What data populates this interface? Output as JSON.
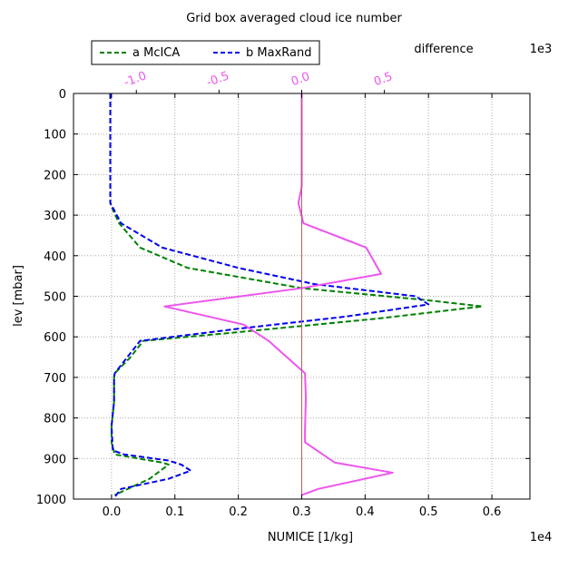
{
  "chart_data": {
    "type": "line",
    "title": "Grid box averaged cloud ice number",
    "xlabel": "NUMICE [1/kg]",
    "ylabel": "lev [mbar]",
    "x_scale_label": "1e4",
    "top_axis_label": "difference",
    "top_axis_scale_label": "1e3",
    "xlim": [
      -0.06,
      0.66
    ],
    "ylim": [
      1000,
      0
    ],
    "top_xlim": [
      -1.38,
      1.38
    ],
    "grid": true,
    "legend_position": "top-left, above plot",
    "x_ticks": [
      {
        "value": 0.0,
        "label": "0.0"
      },
      {
        "value": 0.1,
        "label": "0.1"
      },
      {
        "value": 0.2,
        "label": "0.2"
      },
      {
        "value": 0.3,
        "label": "0.3"
      },
      {
        "value": 0.4,
        "label": "0.4"
      },
      {
        "value": 0.5,
        "label": "0.5"
      },
      {
        "value": 0.6,
        "label": "0.6"
      }
    ],
    "y_ticks": [
      {
        "value": 0,
        "label": "0"
      },
      {
        "value": 100,
        "label": "100"
      },
      {
        "value": 200,
        "label": "200"
      },
      {
        "value": 300,
        "label": "300"
      },
      {
        "value": 400,
        "label": "400"
      },
      {
        "value": 500,
        "label": "500"
      },
      {
        "value": 600,
        "label": "600"
      },
      {
        "value": 700,
        "label": "700"
      },
      {
        "value": 800,
        "label": "800"
      },
      {
        "value": 900,
        "label": "900"
      },
      {
        "value": 1000,
        "label": "1000"
      }
    ],
    "top_ticks": [
      {
        "value": -1.0,
        "label": "-1.0"
      },
      {
        "value": -0.5,
        "label": "-0.5"
      },
      {
        "value": 0.0,
        "label": "0.0"
      },
      {
        "value": 0.5,
        "label": "0.5"
      }
    ],
    "series": [
      {
        "name": "a McICA",
        "color": "#008000",
        "style": "dashed",
        "axis": "bottom",
        "points": [
          [
            -0.002,
            0
          ],
          [
            -0.002,
            100
          ],
          [
            -0.002,
            200
          ],
          [
            -0.002,
            270
          ],
          [
            0.003,
            290
          ],
          [
            0.012,
            320
          ],
          [
            0.045,
            380
          ],
          [
            0.12,
            430
          ],
          [
            0.3,
            480
          ],
          [
            0.5,
            510
          ],
          [
            0.585,
            525
          ],
          [
            0.42,
            555
          ],
          [
            0.19,
            590
          ],
          [
            0.05,
            610
          ],
          [
            0.03,
            650
          ],
          [
            0.005,
            690
          ],
          [
            0.004,
            700
          ],
          [
            0.004,
            760
          ],
          [
            0.0,
            820
          ],
          [
            0.0,
            860
          ],
          [
            0.005,
            890
          ],
          [
            0.08,
            910
          ],
          [
            0.09,
            915
          ],
          [
            0.06,
            950
          ],
          [
            0.005,
            990
          ]
        ]
      },
      {
        "name": "b MaxRand",
        "color": "#0000ee",
        "style": "dashed",
        "axis": "bottom",
        "points": [
          [
            -0.002,
            0
          ],
          [
            -0.002,
            100
          ],
          [
            -0.002,
            200
          ],
          [
            -0.002,
            270
          ],
          [
            0.005,
            290
          ],
          [
            0.015,
            320
          ],
          [
            0.08,
            380
          ],
          [
            0.2,
            430
          ],
          [
            0.32,
            470
          ],
          [
            0.48,
            500
          ],
          [
            0.5,
            520
          ],
          [
            0.37,
            550
          ],
          [
            0.2,
            580
          ],
          [
            0.045,
            610
          ],
          [
            0.02,
            660
          ],
          [
            0.005,
            690
          ],
          [
            0.004,
            700
          ],
          [
            0.004,
            760
          ],
          [
            0.0,
            820
          ],
          [
            0.002,
            880
          ],
          [
            0.02,
            890
          ],
          [
            0.09,
            905
          ],
          [
            0.11,
            915
          ],
          [
            0.125,
            930
          ],
          [
            0.09,
            950
          ],
          [
            0.015,
            975
          ],
          [
            0.005,
            995
          ]
        ]
      },
      {
        "name": "difference",
        "color": "#ee55ee",
        "style": "solid",
        "axis": "top",
        "points": [
          [
            0.0,
            0
          ],
          [
            0.0,
            100
          ],
          [
            0.0,
            200
          ],
          [
            0.0,
            230
          ],
          [
            -0.02,
            270
          ],
          [
            0.01,
            320
          ],
          [
            0.39,
            380
          ],
          [
            0.48,
            445
          ],
          [
            0.0,
            480
          ],
          [
            -0.83,
            525
          ],
          [
            -0.35,
            570
          ],
          [
            -0.2,
            610
          ],
          [
            0.02,
            690
          ],
          [
            0.025,
            750
          ],
          [
            0.02,
            830
          ],
          [
            0.02,
            860
          ],
          [
            0.2,
            910
          ],
          [
            0.55,
            935
          ],
          [
            0.1,
            975
          ],
          [
            0.0,
            990
          ]
        ]
      }
    ]
  }
}
